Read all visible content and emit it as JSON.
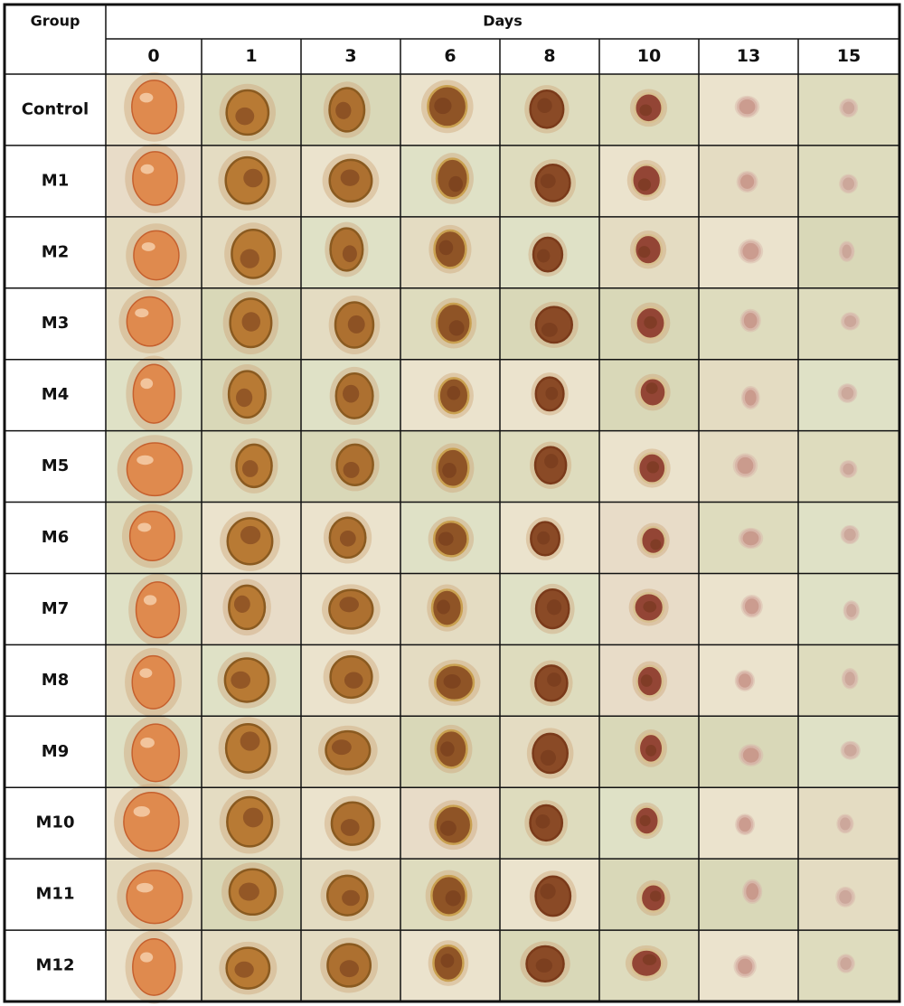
{
  "table": {
    "header": {
      "group": "Group",
      "days": "Days",
      "day_labels": [
        "0",
        "1",
        "3",
        "6",
        "8",
        "10",
        "13",
        "15"
      ]
    },
    "rows": [
      "Control",
      "M1",
      "M2",
      "M3",
      "M4",
      "M5",
      "M6",
      "M7",
      "M8",
      "M9",
      "M10",
      "M11",
      "M12"
    ]
  }
}
